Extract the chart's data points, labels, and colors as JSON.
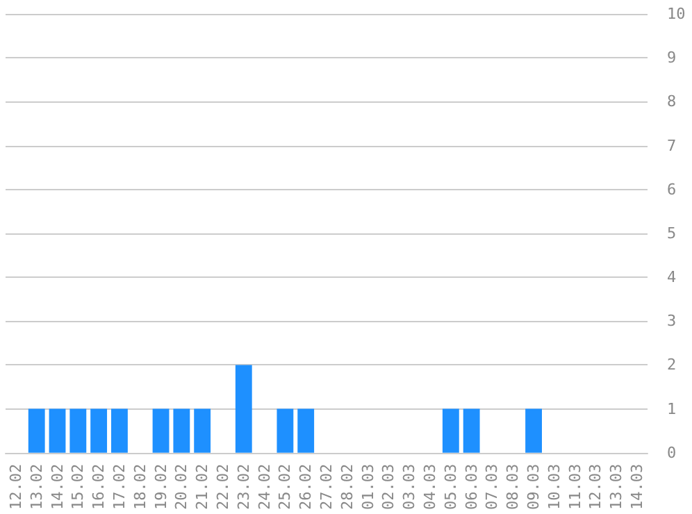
{
  "chart_data": {
    "type": "bar",
    "categories": [
      "12.02",
      "13.02",
      "14.02",
      "15.02",
      "16.02",
      "17.02",
      "18.02",
      "19.02",
      "20.02",
      "21.02",
      "22.02",
      "23.02",
      "24.02",
      "25.02",
      "26.02",
      "27.02",
      "28.02",
      "01.03",
      "02.03",
      "03.03",
      "04.03",
      "05.03",
      "06.03",
      "07.03",
      "08.03",
      "09.03",
      "10.03",
      "11.03",
      "12.03",
      "13.03",
      "14.03"
    ],
    "values": [
      0,
      1,
      1,
      1,
      1,
      1,
      0,
      1,
      1,
      1,
      0,
      2,
      0,
      1,
      1,
      0,
      0,
      0,
      0,
      0,
      0,
      1,
      1,
      0,
      0,
      1,
      0,
      0,
      0,
      0,
      0
    ],
    "color": "#1e90ff",
    "ylim": [
      0,
      10
    ],
    "yticks": [
      0,
      1,
      2,
      3,
      4,
      5,
      6,
      7,
      8,
      9,
      10
    ],
    "grid": "y"
  }
}
